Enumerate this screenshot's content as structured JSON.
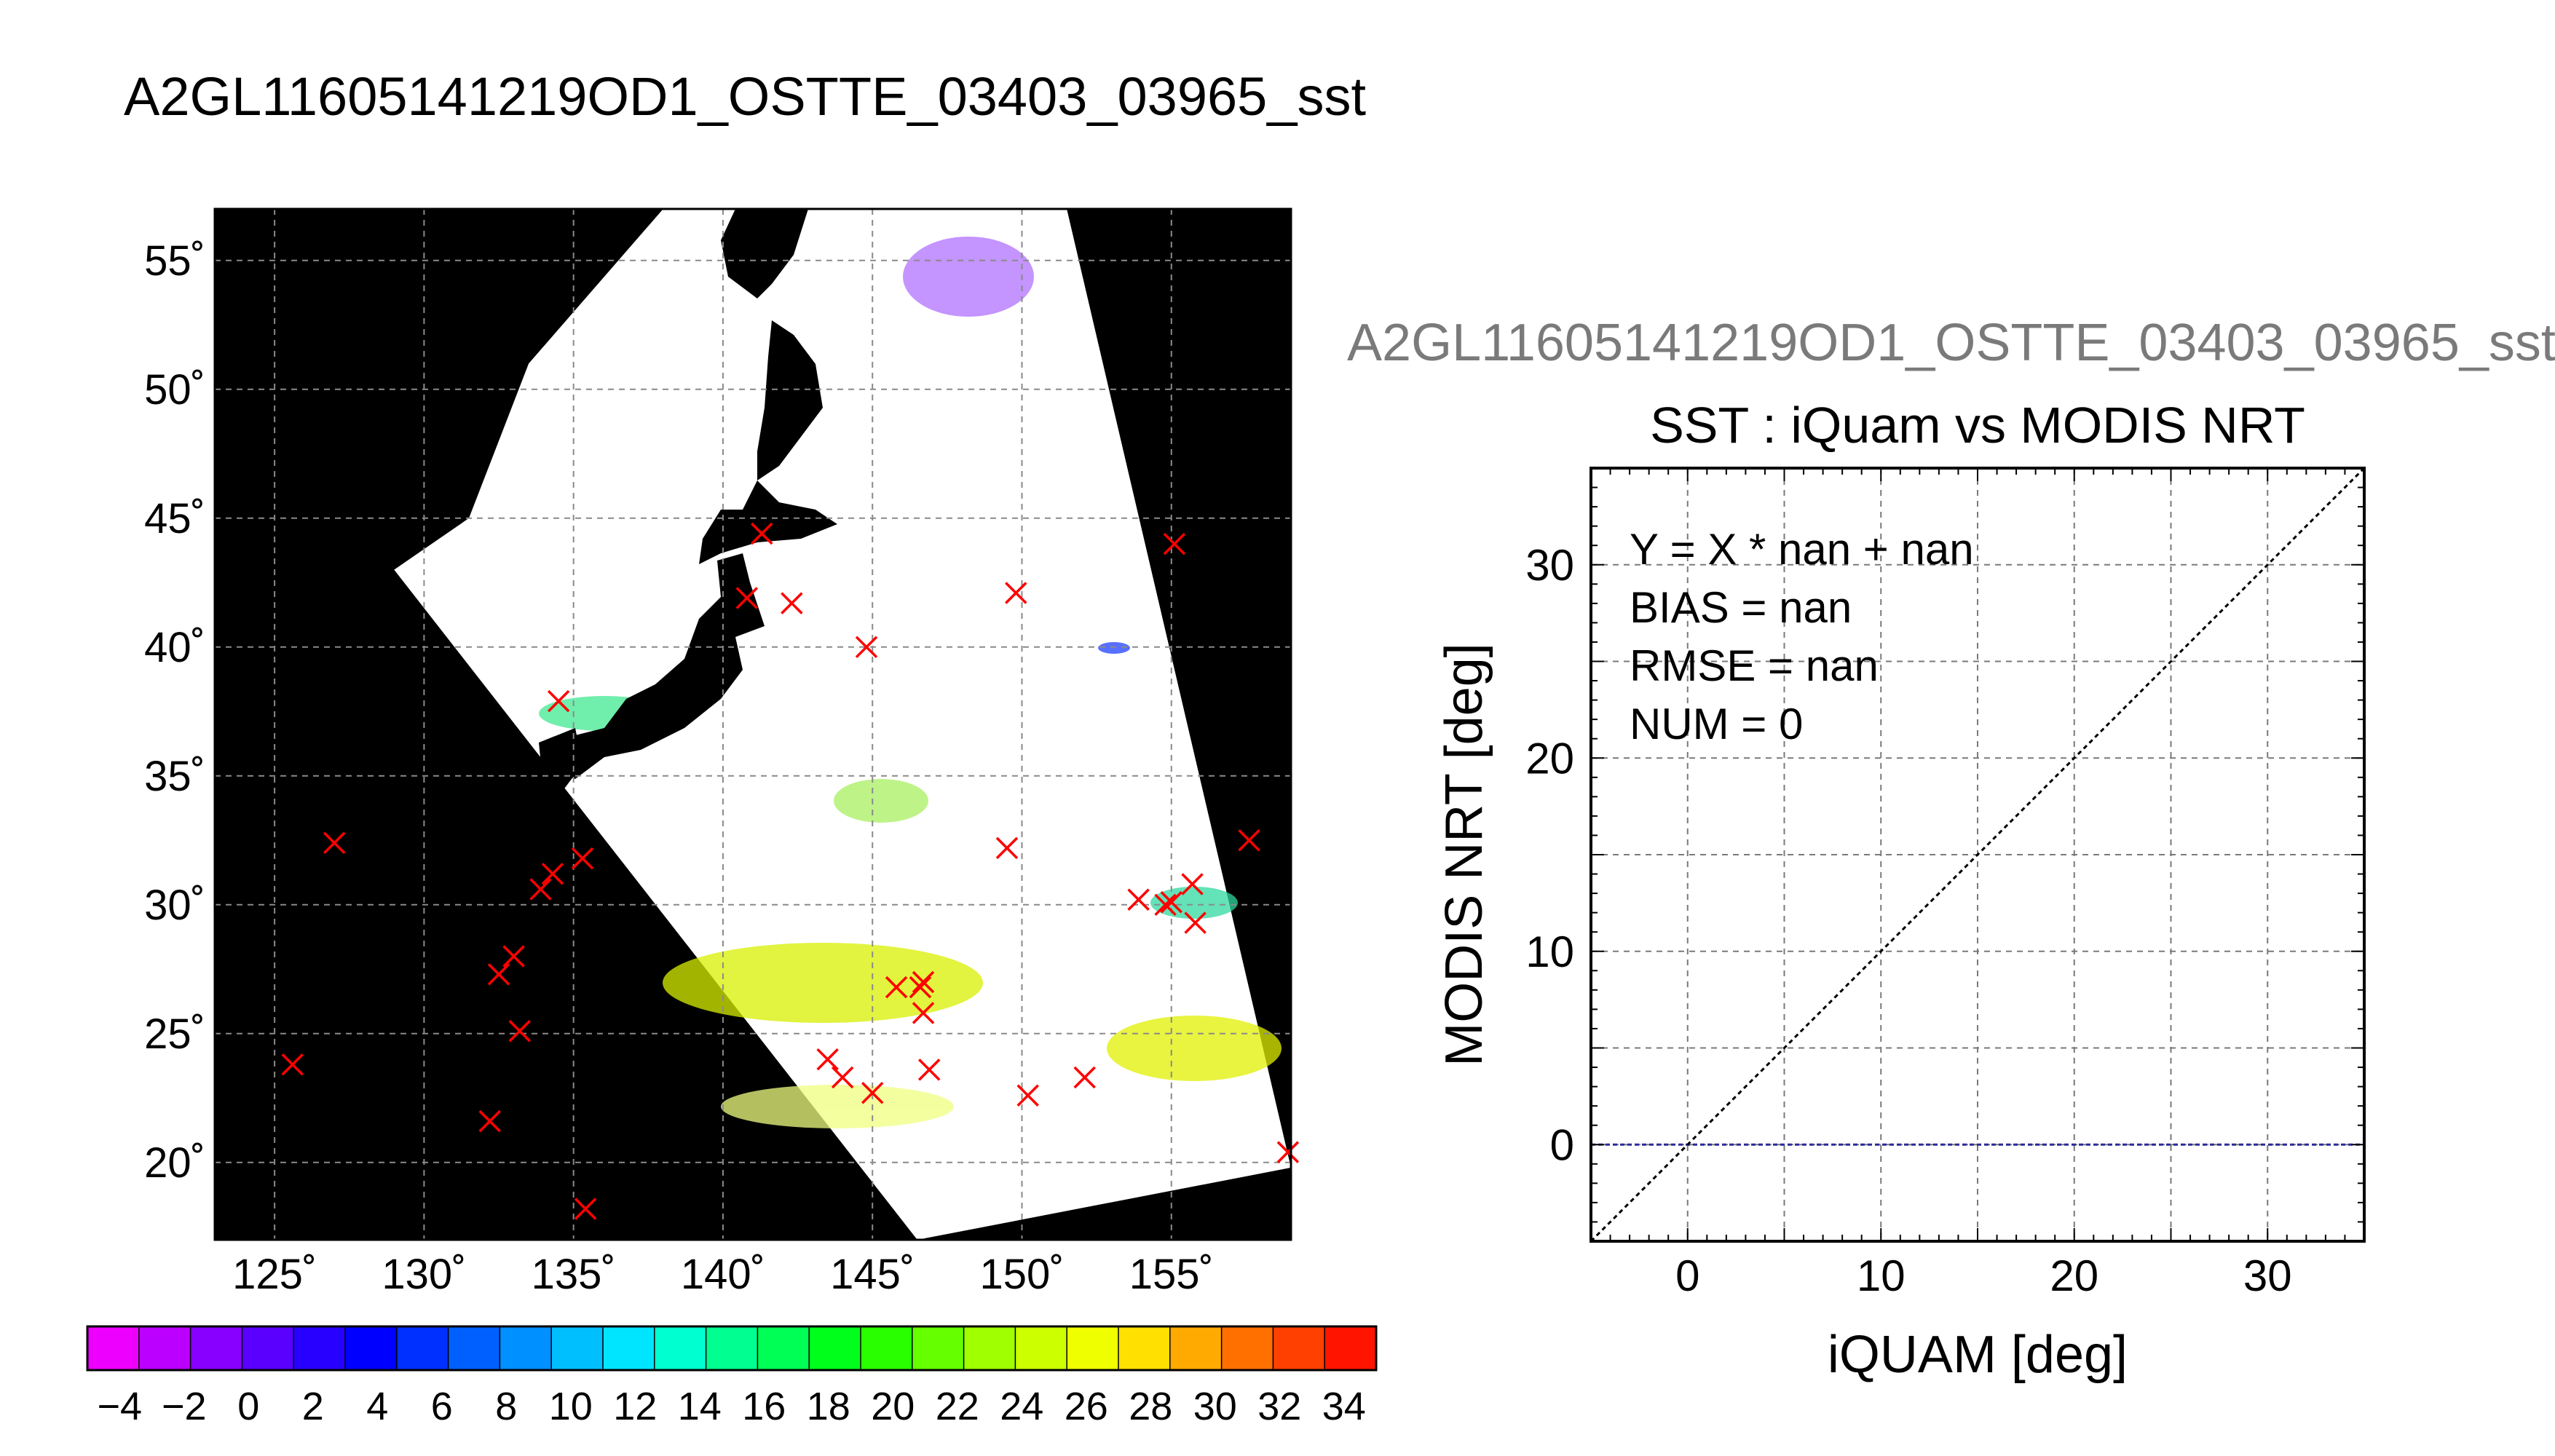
{
  "page_title": "A2GL11605141219OD1_OSTTE_03403_03965_sst",
  "colors": {
    "background": "#ffffff",
    "map_background": "#000000",
    "swath": "#ffffff",
    "marker": "#ff0000",
    "grid": "#888888",
    "zero_line": "#2a2a9a"
  },
  "chart_data": [
    {
      "type": "heatmap",
      "name": "sst-map",
      "xlim": [
        123,
        159
      ],
      "ylim": [
        17,
        57
      ],
      "xticks": [
        125,
        130,
        135,
        140,
        145,
        150,
        155
      ],
      "yticks": [
        20,
        25,
        30,
        35,
        40,
        45,
        50,
        55
      ],
      "xtick_labels": [
        "125˚",
        "130˚",
        "135˚",
        "140˚",
        "145˚",
        "150˚",
        "155˚"
      ],
      "ytick_labels": [
        "20˚",
        "25˚",
        "30˚",
        "35˚",
        "40˚",
        "45˚",
        "50˚",
        "55˚"
      ],
      "grid": true,
      "swath_corners": [
        [
          138.0,
          57.0
        ],
        [
          151.5,
          57.0
        ],
        [
          159.0,
          19.8
        ],
        [
          146.5,
          17.0
        ],
        [
          129.0,
          43.0
        ],
        [
          131.5,
          45.0
        ],
        [
          133.5,
          51.0
        ]
      ],
      "markers": [
        [
          125.6,
          23.8
        ],
        [
          127.0,
          32.4
        ],
        [
          132.2,
          21.6
        ],
        [
          132.5,
          27.3
        ],
        [
          133.0,
          28.0
        ],
        [
          133.2,
          25.1
        ],
        [
          133.9,
          30.6
        ],
        [
          134.3,
          31.2
        ],
        [
          134.5,
          37.9
        ],
        [
          135.3,
          31.8
        ],
        [
          135.4,
          18.2
        ],
        [
          140.8,
          41.9
        ],
        [
          141.3,
          44.4
        ],
        [
          142.3,
          41.7
        ],
        [
          143.5,
          24.0
        ],
        [
          144.0,
          23.3
        ],
        [
          144.8,
          40.0
        ],
        [
          145.0,
          22.7
        ],
        [
          145.8,
          26.8
        ],
        [
          146.6,
          26.8
        ],
        [
          146.7,
          27.0
        ],
        [
          146.7,
          25.8
        ],
        [
          146.9,
          23.6
        ],
        [
          149.5,
          32.2
        ],
        [
          149.8,
          42.1
        ],
        [
          150.2,
          22.6
        ],
        [
          152.1,
          23.3
        ],
        [
          153.9,
          30.2
        ],
        [
          154.8,
          30.0
        ],
        [
          155.0,
          30.1
        ],
        [
          155.1,
          44.0
        ],
        [
          155.7,
          30.8
        ],
        [
          155.8,
          29.3
        ],
        [
          157.6,
          32.5
        ],
        [
          158.9,
          20.4
        ]
      ],
      "colorbar": {
        "min": -5,
        "max": 35,
        "step": 2,
        "tick_labels": [
          "−4",
          "−2",
          "0",
          "2",
          "4",
          "6",
          "8",
          "10",
          "12",
          "14",
          "16",
          "18",
          "20",
          "22",
          "24",
          "26",
          "28",
          "30",
          "32",
          "34"
        ],
        "colors": [
          "#ee00ff",
          "#bb00ff",
          "#8800ff",
          "#5a00ff",
          "#2800ff",
          "#0000ff",
          "#0030ff",
          "#0060ff",
          "#0090ff",
          "#00bfff",
          "#00e5ff",
          "#00ffd0",
          "#00ff90",
          "#00ff55",
          "#00ff1a",
          "#2aff00",
          "#66ff00",
          "#a0ff00",
          "#ccff00",
          "#f0ff00",
          "#ffe000",
          "#ffaa00",
          "#ff7000",
          "#ff4000",
          "#ff1400"
        ]
      }
    },
    {
      "type": "scatter",
      "name": "sst-scatter",
      "header": "A2GL11605141219OD1_OSTTE_03403_03965_sst",
      "title": "SST : iQuam vs MODIS NRT",
      "xlabel": "iQUAM [deg]",
      "ylabel": "MODIS NRT [deg]",
      "xlim": [
        -5,
        35
      ],
      "ylim": [
        -5,
        35
      ],
      "xticks": [
        0,
        10,
        20,
        30
      ],
      "yticks": [
        0,
        10,
        20,
        30
      ],
      "grid_step": 5,
      "stats": [
        "Y = X * nan + nan",
        "BIAS = nan",
        "RMSE = nan",
        "NUM = 0"
      ],
      "lines": [
        {
          "kind": "identity",
          "points": [
            [
              -5,
              -5
            ],
            [
              35,
              35
            ]
          ]
        },
        {
          "kind": "zero",
          "points": [
            [
              -5,
              0
            ],
            [
              35,
              0
            ]
          ]
        }
      ],
      "points": []
    }
  ]
}
